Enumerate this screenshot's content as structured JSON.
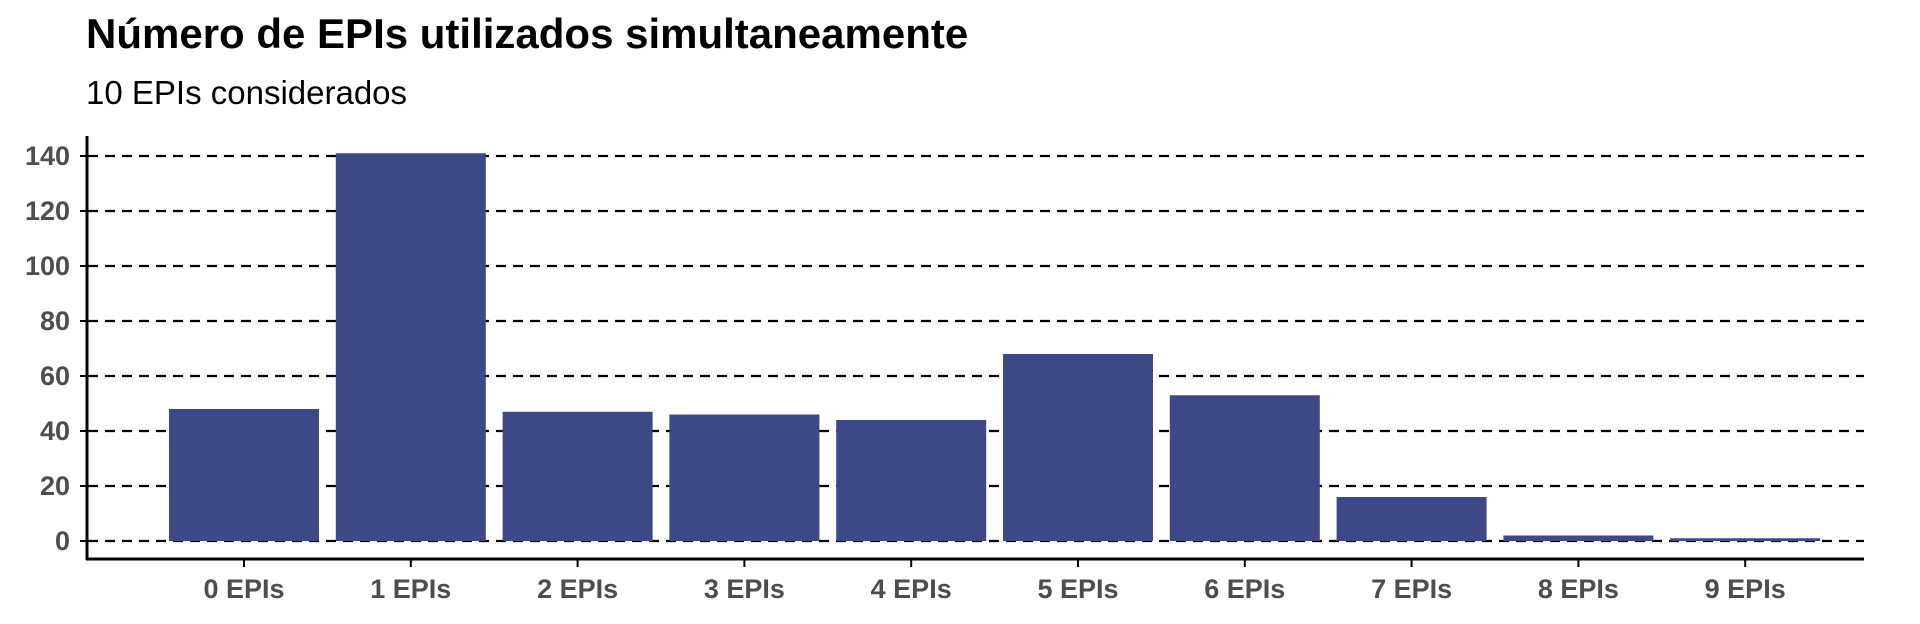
{
  "chart_data": {
    "type": "bar",
    "title": "Número de EPIs utilizados simultaneamente",
    "subtitle": "10 EPIs considerados",
    "xlabel": "",
    "ylabel": "",
    "categories": [
      "0 EPIs",
      "1 EPIs",
      "2 EPIs",
      "3 EPIs",
      "4 EPIs",
      "5 EPIs",
      "6 EPIs",
      "7 EPIs",
      "8 EPIs",
      "9 EPIs"
    ],
    "values": [
      48,
      141,
      47,
      46,
      44,
      68,
      53,
      16,
      2,
      1
    ],
    "ylim": [
      0,
      140
    ],
    "yticks": [
      0,
      20,
      40,
      60,
      80,
      100,
      120,
      140
    ],
    "grid": "horizontal dashed",
    "bar_color": "#3d4887"
  }
}
